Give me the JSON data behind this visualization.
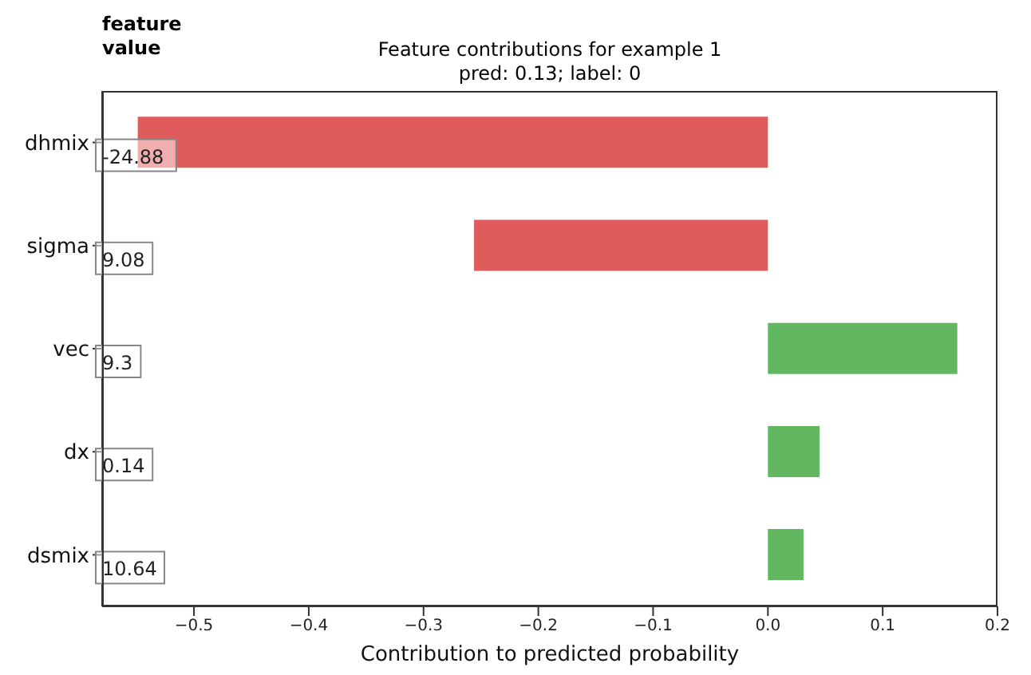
{
  "chart_data": {
    "type": "bar",
    "orientation": "horizontal",
    "title": "Feature contributions for example 1",
    "subtitle": "pred: 0.13; label: 0",
    "xlabel": "Contribution to predicted probability",
    "categories": [
      "dhmix",
      "sigma",
      "vec",
      "dx",
      "dsmix"
    ],
    "values": [
      -0.549,
      -0.256,
      0.165,
      0.045,
      0.031
    ],
    "colors": [
      "#e05c5c",
      "#e05c5c",
      "#61b861",
      "#61b861",
      "#61b861"
    ],
    "xlim": [
      -0.58,
      0.2
    ],
    "xticks": [
      {
        "value": -0.5,
        "label": "−0.5"
      },
      {
        "value": -0.4,
        "label": "−0.4"
      },
      {
        "value": -0.3,
        "label": "−0.3"
      },
      {
        "value": -0.2,
        "label": "−0.2"
      },
      {
        "value": -0.1,
        "label": "−0.1"
      },
      {
        "value": 0,
        "label": "0.0"
      },
      0.1,
      0.2
    ],
    "grid": false,
    "legend": false,
    "annotations": [
      "feature\nvalue",
      "-24.88",
      "9.08",
      "9.3",
      "0.14",
      "10.64"
    ]
  }
}
